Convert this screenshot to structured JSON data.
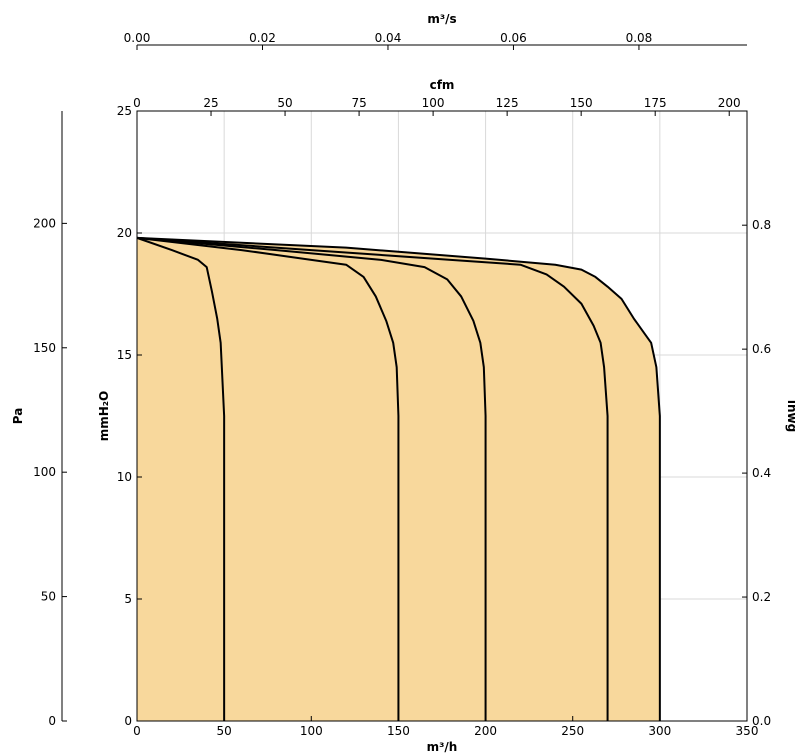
{
  "chart_data": {
    "type": "area",
    "xlabel": "m³/h",
    "ylabel": "mmH₂O",
    "xlim": [
      0,
      350
    ],
    "ylim": [
      0,
      25
    ],
    "x_ticks": [
      "0",
      "50",
      "100",
      "150",
      "200",
      "250",
      "300",
      "350"
    ],
    "y_ticks": [
      "0",
      "5",
      "10",
      "15",
      "20",
      "25"
    ],
    "grid": true,
    "fill_color": "#f8d89c",
    "line_color": "#000000",
    "secondary_axes": {
      "top_cfm": {
        "label": "cfm",
        "ticks": [
          "0",
          "25",
          "50",
          "75",
          "100",
          "125",
          "150",
          "175",
          "200"
        ]
      },
      "top_m3s": {
        "label": "m³/s",
        "ticks": [
          "0.00",
          "0.02",
          "0.04",
          "0.06",
          "0.08"
        ]
      },
      "left_pa": {
        "label": "Pa",
        "ticks": [
          "0",
          "50",
          "100",
          "150",
          "200"
        ]
      },
      "right_inwg": {
        "label": "inwg",
        "ticks": [
          "0.0",
          "0.2",
          "0.4",
          "0.6",
          "0.8"
        ]
      }
    },
    "series": [
      {
        "x": [
          0,
          20,
          35,
          40,
          43,
          46,
          48,
          49,
          50,
          50
        ],
        "y": [
          19.8,
          19.3,
          18.9,
          18.6,
          17.6,
          16.5,
          15.5,
          14.0,
          12.5,
          0
        ]
      },
      {
        "x": [
          0,
          60,
          100,
          120,
          130,
          137,
          143,
          147,
          149,
          150,
          150
        ],
        "y": [
          19.8,
          19.3,
          18.9,
          18.7,
          18.2,
          17.4,
          16.4,
          15.5,
          14.5,
          12.5,
          0
        ]
      },
      {
        "x": [
          0,
          80,
          140,
          165,
          178,
          186,
          193,
          197,
          199,
          200,
          200
        ],
        "y": [
          19.8,
          19.3,
          18.9,
          18.6,
          18.1,
          17.4,
          16.4,
          15.5,
          14.5,
          12.5,
          0
        ]
      },
      {
        "x": [
          0,
          100,
          180,
          220,
          235,
          245,
          255,
          262,
          266,
          268,
          270,
          270
        ],
        "y": [
          19.8,
          19.3,
          18.9,
          18.7,
          18.3,
          17.8,
          17.1,
          16.2,
          15.5,
          14.5,
          12.5,
          0
        ]
      },
      {
        "x": [
          0,
          120,
          200,
          240,
          255,
          263,
          270,
          278,
          285,
          291,
          295,
          298,
          300,
          300
        ],
        "y": [
          19.8,
          19.4,
          18.95,
          18.7,
          18.5,
          18.2,
          17.8,
          17.3,
          16.5,
          15.9,
          15.5,
          14.5,
          12.5,
          0
        ]
      }
    ]
  }
}
